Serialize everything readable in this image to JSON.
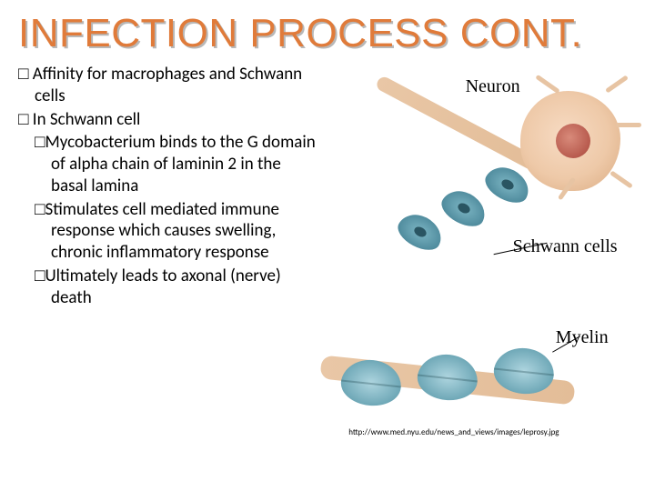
{
  "title": {
    "text": "INFECTION PROCESS CONT.",
    "color": "#e07b3a",
    "shadow_color": "#b8b8b8",
    "fontsize_pt": 33
  },
  "bullets": [
    {
      "marker": "□",
      "text": "Affinity for macrophages and Schwann cells"
    },
    {
      "marker": "□",
      "text": "In Schwann cell"
    }
  ],
  "sub_bullets": [
    {
      "marker": "□",
      "text": "Mycobacterium binds to the G domain of alpha chain of laminin 2 in the basal lamina"
    },
    {
      "marker": "□",
      "text": "Stimulates cell mediated immune response which causes swelling, chronic inflammatory response"
    },
    {
      "marker": "□",
      "text": "Ultimately leads to axonal (nerve) death"
    }
  ],
  "body_fontsize_pt": 15,
  "diagram": {
    "labels": {
      "neuron": "Neuron",
      "schwann": "Schwann cells",
      "myelin": "Myelin"
    },
    "colors": {
      "neuron_body": "#eec9a8",
      "nucleus": "#b85b4e",
      "schwann_fill": "#4e8a9c",
      "myelin_fill": "#6fa8b7",
      "axon": "#e3bd98"
    },
    "label_fontsize_pt": 15
  },
  "caption": "http://www.med.nyu.edu/news_and_views/images/leprosy.jpg"
}
